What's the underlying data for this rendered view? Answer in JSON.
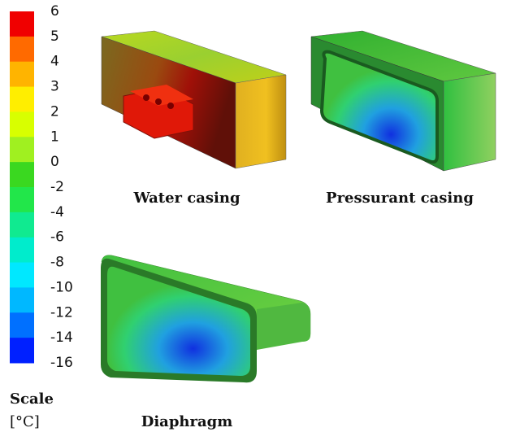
{
  "scale": {
    "title": "Scale",
    "unit": "[°C]",
    "labels": [
      "6",
      "5",
      "4",
      "3",
      "2",
      "1",
      "0",
      "-2",
      "-4",
      "-6",
      "-8",
      "-10",
      "-12",
      "-14",
      "-16"
    ],
    "colors": [
      "#f00000",
      "#ff6a00",
      "#ffb400",
      "#ffee00",
      "#d8ff00",
      "#a0f020",
      "#3ad820",
      "#22e64a",
      "#10ea90",
      "#00eccc",
      "#00e8ff",
      "#00b8ff",
      "#0070ff",
      "#0020ff"
    ]
  },
  "panels": [
    {
      "caption": "Water casing"
    },
    {
      "caption": "Pressurant casing"
    },
    {
      "caption": "Diaphragm"
    }
  ]
}
